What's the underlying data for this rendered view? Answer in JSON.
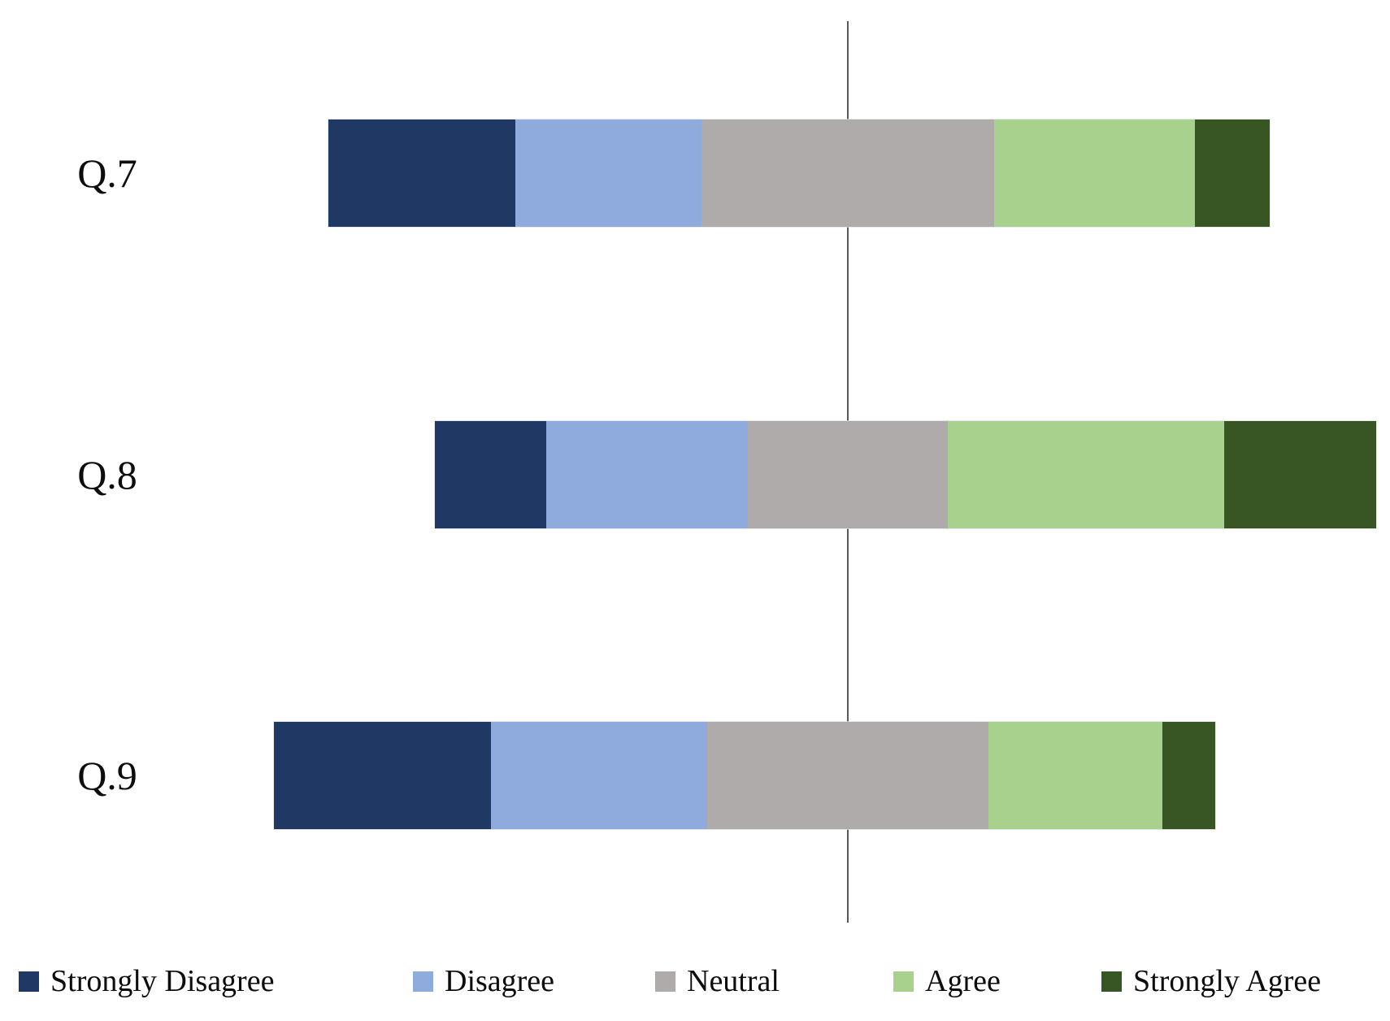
{
  "chart_data": {
    "type": "bar",
    "orientation": "horizontal",
    "variant": "diverging stacked Likert chart, each row centered on the midpoint of its Neutral segment",
    "title": "",
    "categories": [
      "Q.7",
      "Q.8",
      "Q.9"
    ],
    "series": [
      {
        "name": "Strongly Disagree",
        "color": "#1F3864",
        "values": [
          19.8,
          11.8,
          23.1
        ]
      },
      {
        "name": "Disagree",
        "color": "#8FAADC",
        "values": [
          19.8,
          21.4,
          23.0
        ]
      },
      {
        "name": "Neutral",
        "color": "#AFABAB",
        "values": [
          31.1,
          21.3,
          29.8
        ]
      },
      {
        "name": "Agree",
        "color": "#A9D18E",
        "values": [
          21.3,
          29.3,
          18.5
        ]
      },
      {
        "name": "Strongly Agree",
        "color": "#375623",
        "values": [
          8.0,
          16.2,
          5.6
        ]
      }
    ],
    "units": "percent of row total",
    "row_totals_percent": [
      100,
      100,
      100
    ],
    "axis": {
      "baseline": "single vertical reference line through the Neutral midpoints",
      "baseline_color": "#595959"
    },
    "grid": false,
    "data_labels": false,
    "tick_labels": [],
    "legend": {
      "position": "bottom",
      "entries": [
        "Strongly Disagree",
        "Disagree",
        "Neutral",
        "Agree",
        "Strongly Agree"
      ]
    }
  }
}
